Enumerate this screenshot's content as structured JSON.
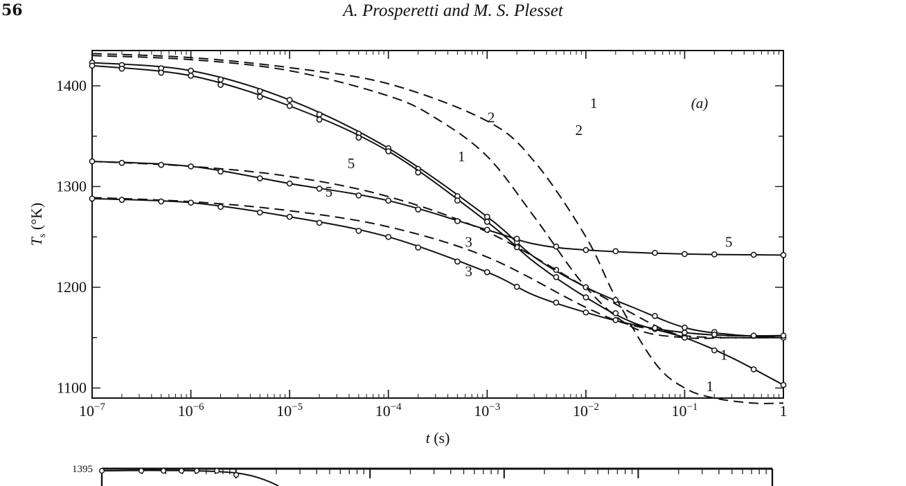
{
  "header": {
    "page_number": "56",
    "running_head": "A. Prosperetti and M. S. Plesset"
  },
  "chart_data": [
    {
      "type": "line",
      "panel_label": "(a)",
      "xlabel": "t (s)",
      "ylabel": "T_s (°K)",
      "x_scale": "log",
      "xlim": [
        1e-07,
        1
      ],
      "ylim": [
        1090,
        1435
      ],
      "x_tick_values": [
        1e-07,
        1e-06,
        1e-05,
        0.0001,
        0.001,
        0.01,
        0.1,
        1
      ],
      "x_tick_labels": [
        {
          "base": "10",
          "exp": "−7"
        },
        {
          "base": "10",
          "exp": "−6"
        },
        {
          "base": "10",
          "exp": "−5"
        },
        {
          "base": "10",
          "exp": "−4"
        },
        {
          "base": "10",
          "exp": "−3"
        },
        {
          "base": "10",
          "exp": "−2"
        },
        {
          "base": "10",
          "exp": "−1"
        },
        {
          "base": "1",
          "exp": ""
        }
      ],
      "y_tick_values": [
        1100,
        1200,
        1300,
        1400
      ],
      "y_tick_labels": [
        "1100",
        "1200",
        "1300",
        "1400"
      ],
      "series": [
        {
          "label": "1",
          "style": "dashed",
          "x": [
            1e-07,
            1e-06,
            1e-05,
            0.0001,
            0.001,
            0.003,
            0.01,
            0.02,
            0.05,
            0.1,
            0.2,
            0.5,
            1
          ],
          "y": [
            1432,
            1428,
            1418,
            1402,
            1365,
            1325,
            1250,
            1190,
            1125,
            1100,
            1090,
            1085,
            1085
          ],
          "markers": false
        },
        {
          "label": "2",
          "style": "dashed",
          "x": [
            1e-07,
            1e-06,
            1e-05,
            0.0001,
            0.0003,
            0.001,
            0.003,
            0.01,
            0.03,
            0.1,
            0.3,
            1
          ],
          "y": [
            1430,
            1426,
            1415,
            1390,
            1368,
            1330,
            1270,
            1200,
            1160,
            1150,
            1150,
            1150
          ],
          "markers": false
        },
        {
          "label": "2",
          "style": "solid",
          "x": [
            1e-07,
            1e-06,
            1e-05,
            0.0001,
            0.001,
            0.003,
            0.01,
            0.03,
            0.1,
            0.3,
            1
          ],
          "y": [
            1423,
            1415,
            1386,
            1338,
            1270,
            1230,
            1200,
            1180,
            1160,
            1153,
            1150
          ],
          "markers": true
        },
        {
          "label": "1",
          "style": "solid",
          "x": [
            1e-07,
            1e-06,
            1e-05,
            0.0001,
            0.001,
            0.003,
            0.01,
            0.03,
            0.1,
            0.3,
            1
          ],
          "y": [
            1420,
            1410,
            1380,
            1335,
            1265,
            1225,
            1190,
            1165,
            1150,
            1130,
            1103
          ],
          "markers": true
        },
        {
          "label": "5",
          "style": "dashed",
          "x": [
            1e-07,
            1e-06,
            1e-05,
            0.0001,
            0.001,
            0.01,
            0.05,
            0.1,
            0.3,
            1
          ],
          "y": [
            1325,
            1320,
            1310,
            1290,
            1255,
            1200,
            1162,
            1152,
            1150,
            1150
          ],
          "markers": false
        },
        {
          "label": "5",
          "style": "solid",
          "x": [
            1e-07,
            1e-06,
            1e-05,
            0.0001,
            0.001,
            0.003,
            0.01,
            0.1,
            1
          ],
          "y": [
            1325,
            1320,
            1303,
            1286,
            1257,
            1243,
            1237,
            1233,
            1232
          ],
          "markers": true
        },
        {
          "label": "3",
          "style": "dashed",
          "x": [
            1e-07,
            1e-06,
            1e-05,
            0.0001,
            0.001,
            0.01,
            0.03,
            0.1,
            0.3,
            1
          ],
          "y": [
            1289,
            1285,
            1276,
            1260,
            1230,
            1180,
            1162,
            1155,
            1152,
            1152
          ],
          "markers": false
        },
        {
          "label": "3",
          "style": "solid",
          "x": [
            1e-07,
            1e-06,
            1e-05,
            0.0001,
            0.001,
            0.003,
            0.01,
            0.03,
            0.1,
            0.3,
            1
          ],
          "y": [
            1288,
            1284,
            1270,
            1250,
            1215,
            1192,
            1175,
            1163,
            1155,
            1152,
            1152
          ],
          "markers": true
        }
      ],
      "curve_labels": [
        {
          "text": "1",
          "x": 0.012,
          "y": 1378
        },
        {
          "text": "2",
          "x": 0.0011,
          "y": 1364
        },
        {
          "text": "2",
          "x": 0.0085,
          "y": 1351
        },
        {
          "text": "1",
          "x": 0.00055,
          "y": 1325
        },
        {
          "text": "5",
          "x": 4.2e-05,
          "y": 1318
        },
        {
          "text": "5",
          "x": 2.5e-05,
          "y": 1290
        },
        {
          "text": "5",
          "x": 0.28,
          "y": 1240
        },
        {
          "text": "3",
          "x": 0.00065,
          "y": 1240
        },
        {
          "text": "3",
          "x": 0.00065,
          "y": 1211
        },
        {
          "text": "1",
          "x": 0.25,
          "y": 1128
        },
        {
          "text": "1",
          "x": 0.18,
          "y": 1097
        }
      ]
    },
    {
      "type": "line",
      "partial": true,
      "x_scale": "log",
      "y_tick_labels": [
        "1395"
      ],
      "series": [
        {
          "label": "",
          "style": "solid",
          "markers": true
        }
      ]
    }
  ]
}
